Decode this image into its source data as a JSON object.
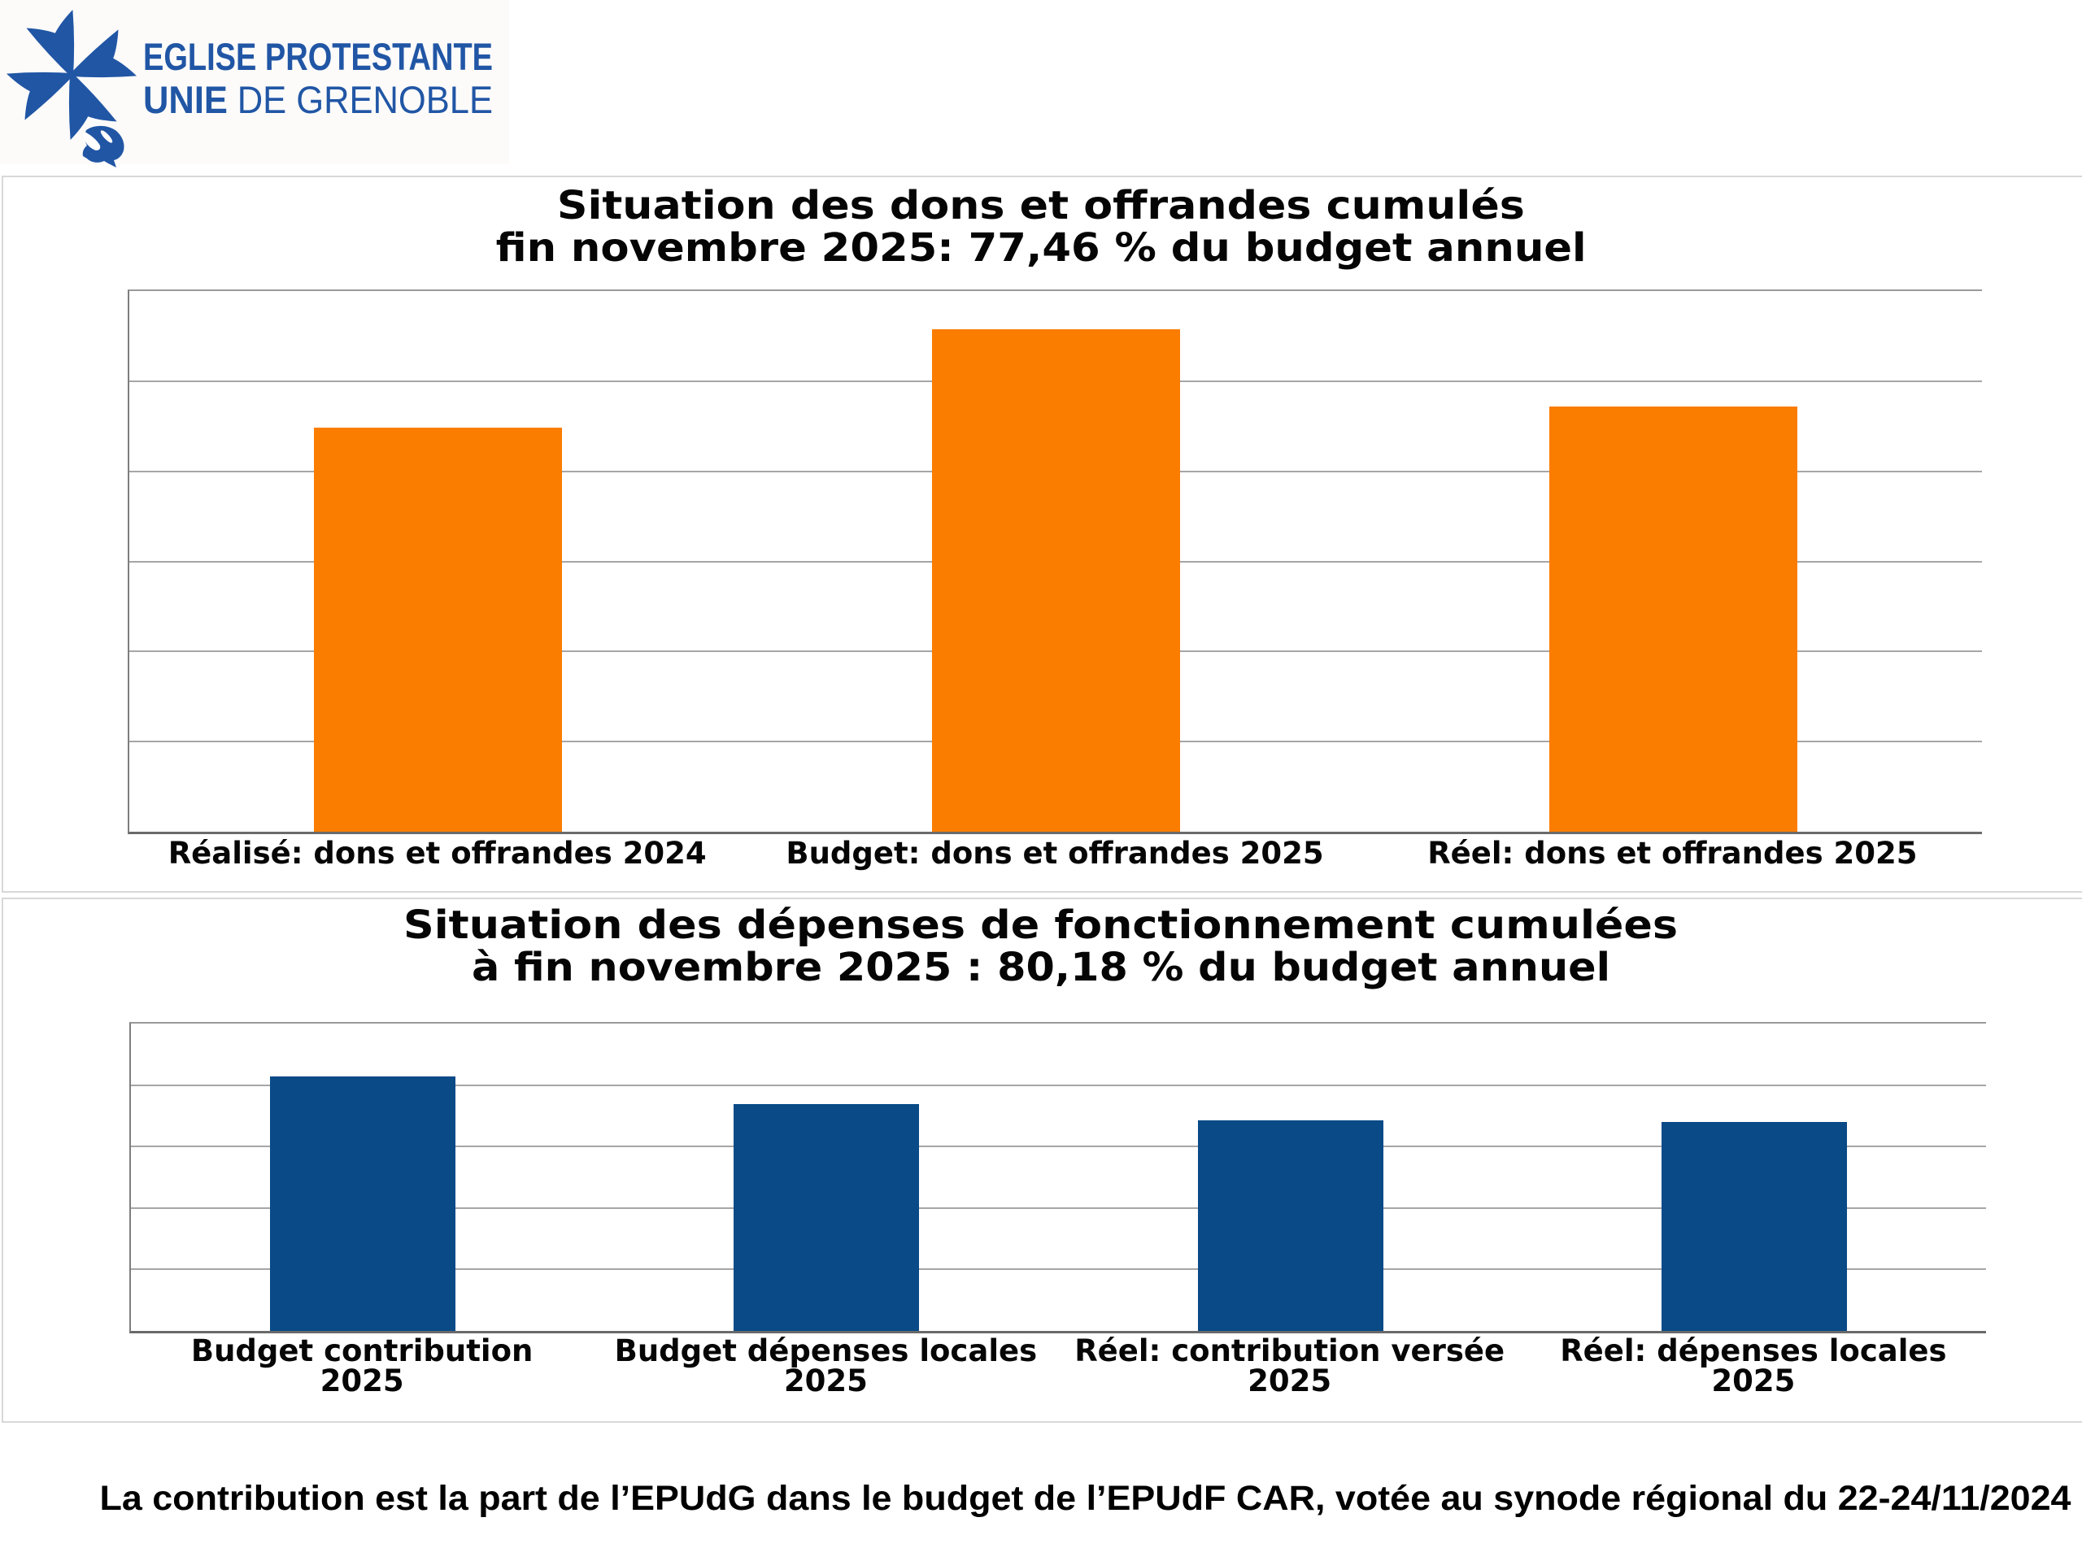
{
  "page": {
    "background": "#ffffff",
    "logo": {
      "icon": "huguenot-cross-dove-icon",
      "color": "#2156a5",
      "line1": "EGLISE PROTESTANTE",
      "line2_bold": "UNIE",
      "line2_light": "DE GRENOBLE"
    },
    "footnote": "La contribution est la part de l’EPUdG dans le budget de l’EPUdF CAR, votée au synode régional du 22-24/11/2024"
  },
  "chart_data": [
    {
      "type": "bar",
      "title": "Situation des dons et offrandes cumulés",
      "subtitle": "fin novembre 2025: 77,46 % du budget annuel",
      "categories": [
        "Réalisé: dons et offrandes 2024",
        "Budget: dons et offrandes 2025",
        "Réel: dons et offrandes 2025"
      ],
      "values": [
        4.48,
        5.58,
        4.72
      ],
      "ylim": [
        0,
        6
      ],
      "gridline_step": 1,
      "bar_color": "#fa7d00",
      "grid": true,
      "legend": "none",
      "y_axis_tick_labels": "none",
      "note": "bar values estimated in gridline units; no numeric axis labels shown"
    },
    {
      "type": "bar",
      "title": "Situation des dépenses de fonctionnement cumulées",
      "subtitle": "à fin novembre 2025 : 80,18 % du budget annuel",
      "categories": [
        "Budget contribution\n2025",
        "Budget dépenses locales\n2025",
        "Réel: contribution versée\n2025",
        "Réel: dépenses locales\n2025"
      ],
      "values": [
        4.14,
        3.69,
        3.42,
        3.4
      ],
      "ylim": [
        0,
        5
      ],
      "gridline_step": 1,
      "bar_color": "#094a87",
      "grid": true,
      "legend": "none",
      "y_axis_tick_labels": "none",
      "note": "bar values estimated in gridline units; no numeric axis labels shown"
    }
  ]
}
